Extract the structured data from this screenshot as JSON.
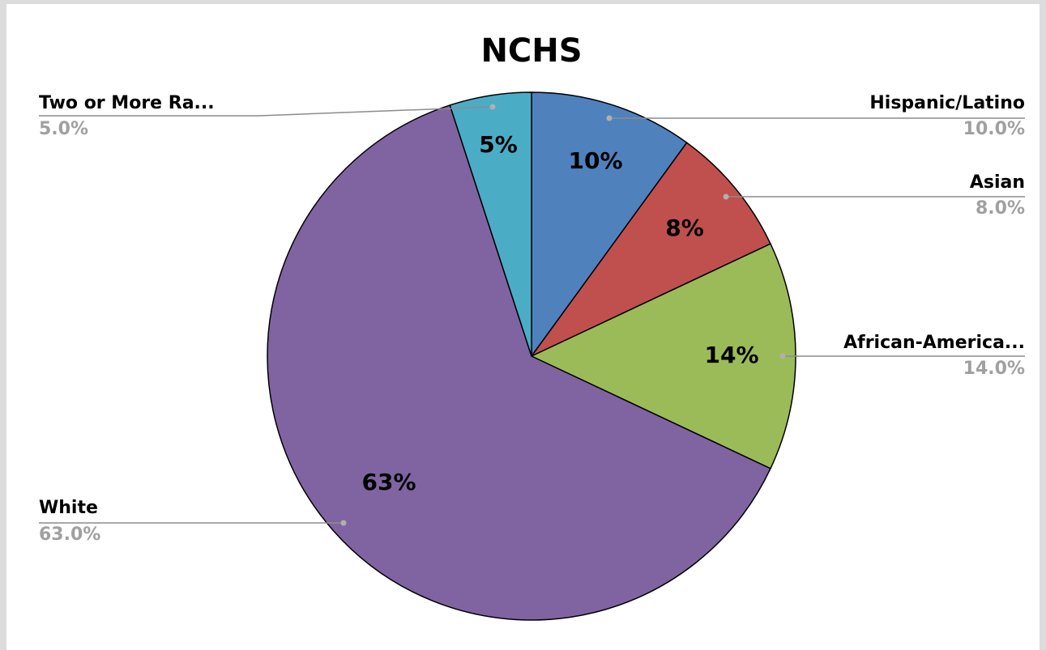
{
  "chart_data": {
    "type": "pie",
    "title": "NCHS",
    "categories": [
      "Hispanic/Latino",
      "Asian",
      "African-America...",
      "White",
      "Two or More Ra..."
    ],
    "values": [
      10,
      8,
      14,
      63,
      5
    ],
    "value_labels": [
      "10%",
      "8%",
      "14%",
      "63%",
      "5%"
    ],
    "callout_value_labels": [
      "10.0%",
      "8.0%",
      "14.0%",
      "63.0%",
      "5.0%"
    ],
    "colors": [
      "#4f81bd",
      "#c0504d",
      "#9bbb59",
      "#8064a2",
      "#4bacc6"
    ]
  }
}
